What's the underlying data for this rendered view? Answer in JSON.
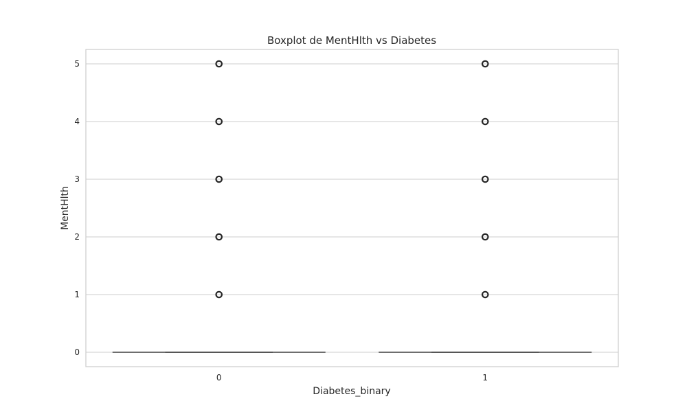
{
  "chart_data": {
    "type": "box",
    "title": "Boxplot de MentHlth vs Diabetes",
    "xlabel": "Diabetes_binary",
    "ylabel": "MentHlth",
    "categories": [
      "0",
      "1"
    ],
    "ylim": [
      -0.25,
      5.25
    ],
    "yticks": [
      0,
      1,
      2,
      3,
      4,
      5
    ],
    "grid": true,
    "boxes": [
      {
        "category": "0",
        "min": 0,
        "q1": 0,
        "median": 0,
        "q3": 0,
        "max": 0,
        "outliers": [
          1,
          2,
          3,
          4,
          5
        ]
      },
      {
        "category": "1",
        "min": 0,
        "q1": 0,
        "median": 0,
        "q3": 0,
        "max": 0,
        "outliers": [
          1,
          2,
          3,
          4,
          5
        ]
      }
    ],
    "colors": {
      "grid": "#cccccc",
      "frame": "#cccccc",
      "box": "#3f3f3f",
      "outlier": "#262626"
    }
  }
}
